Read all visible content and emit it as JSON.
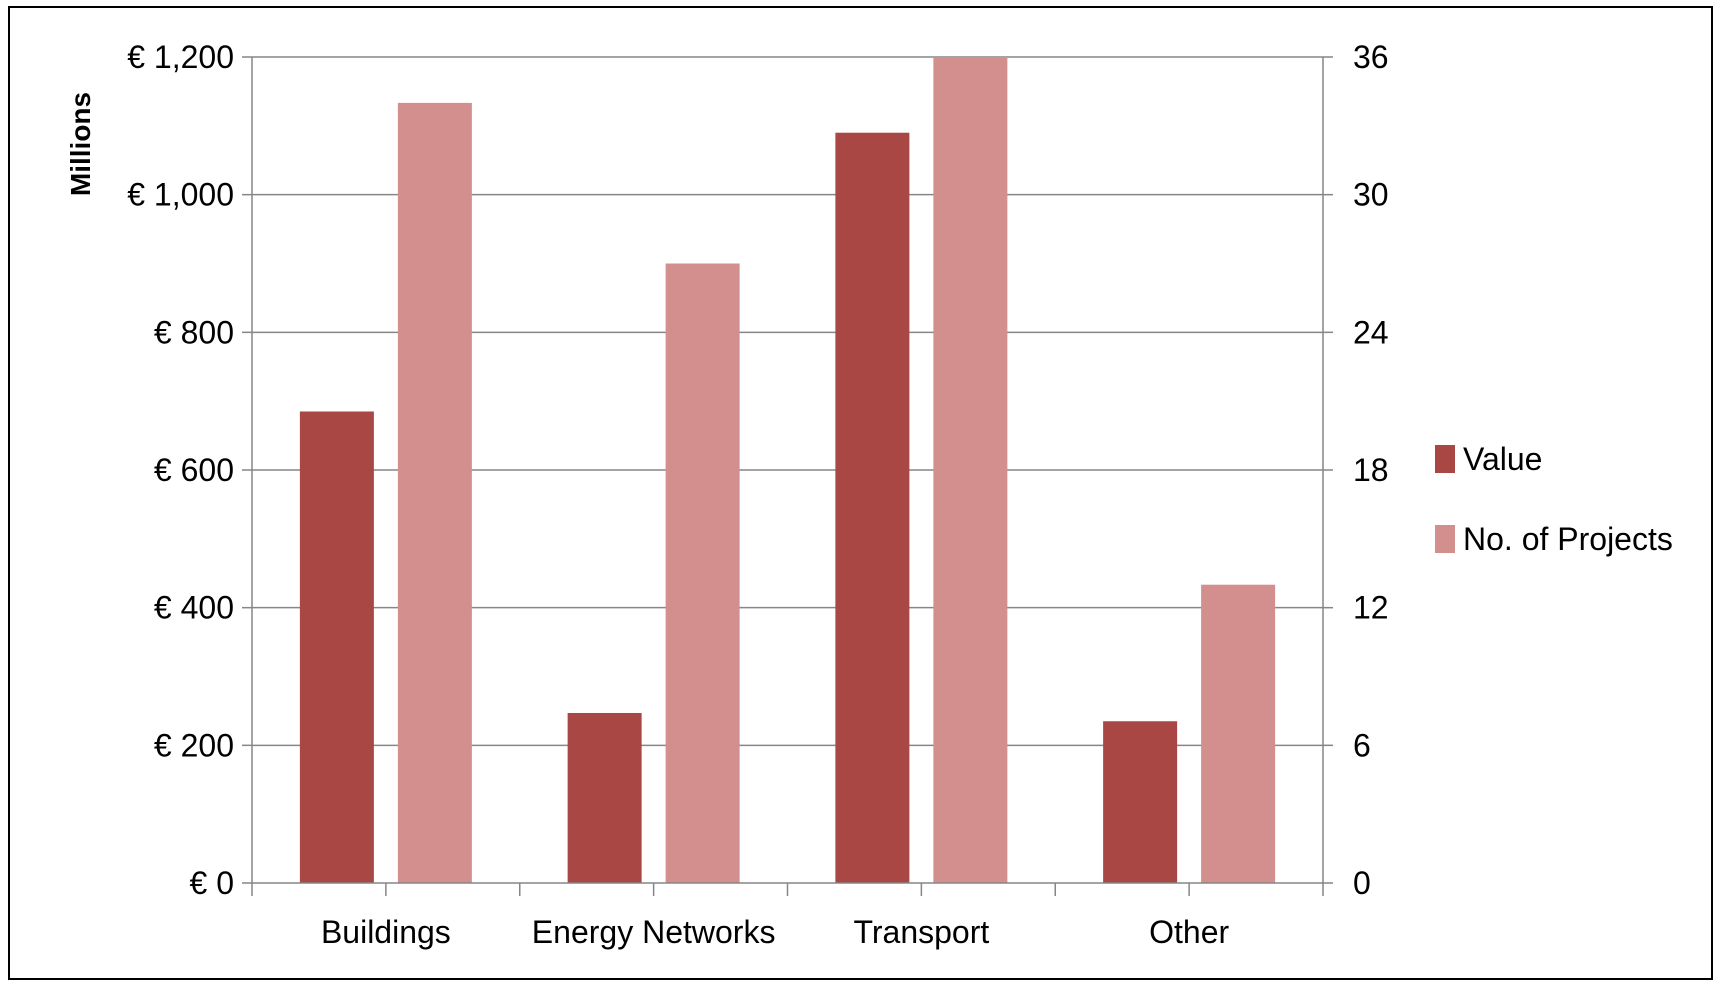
{
  "chart_data": {
    "type": "bar",
    "categories": [
      "Buildings",
      "Energy Networks",
      "Transport",
      "Other"
    ],
    "series": [
      {
        "name": "Value",
        "axis": "left",
        "values": [
          685,
          247,
          1090,
          235
        ],
        "color": "#a84744"
      },
      {
        "name": "No. of Projects",
        "axis": "right",
        "values": [
          34,
          27,
          36,
          13
        ],
        "color": "#d38f8e"
      }
    ],
    "ylabel": "Millions",
    "y_left": {
      "min": 0,
      "max": 1200,
      "step": 200,
      "tick_labels": [
        "€ 0",
        "€ 200",
        "€ 400",
        "€ 600",
        "€ 800",
        "€ 1,000",
        "€ 1,200"
      ]
    },
    "y_right": {
      "min": 0,
      "max": 36,
      "step": 6,
      "tick_labels": [
        "0",
        "6",
        "12",
        "18",
        "24",
        "30",
        "36"
      ]
    },
    "grid": true,
    "legend_position": "right"
  }
}
